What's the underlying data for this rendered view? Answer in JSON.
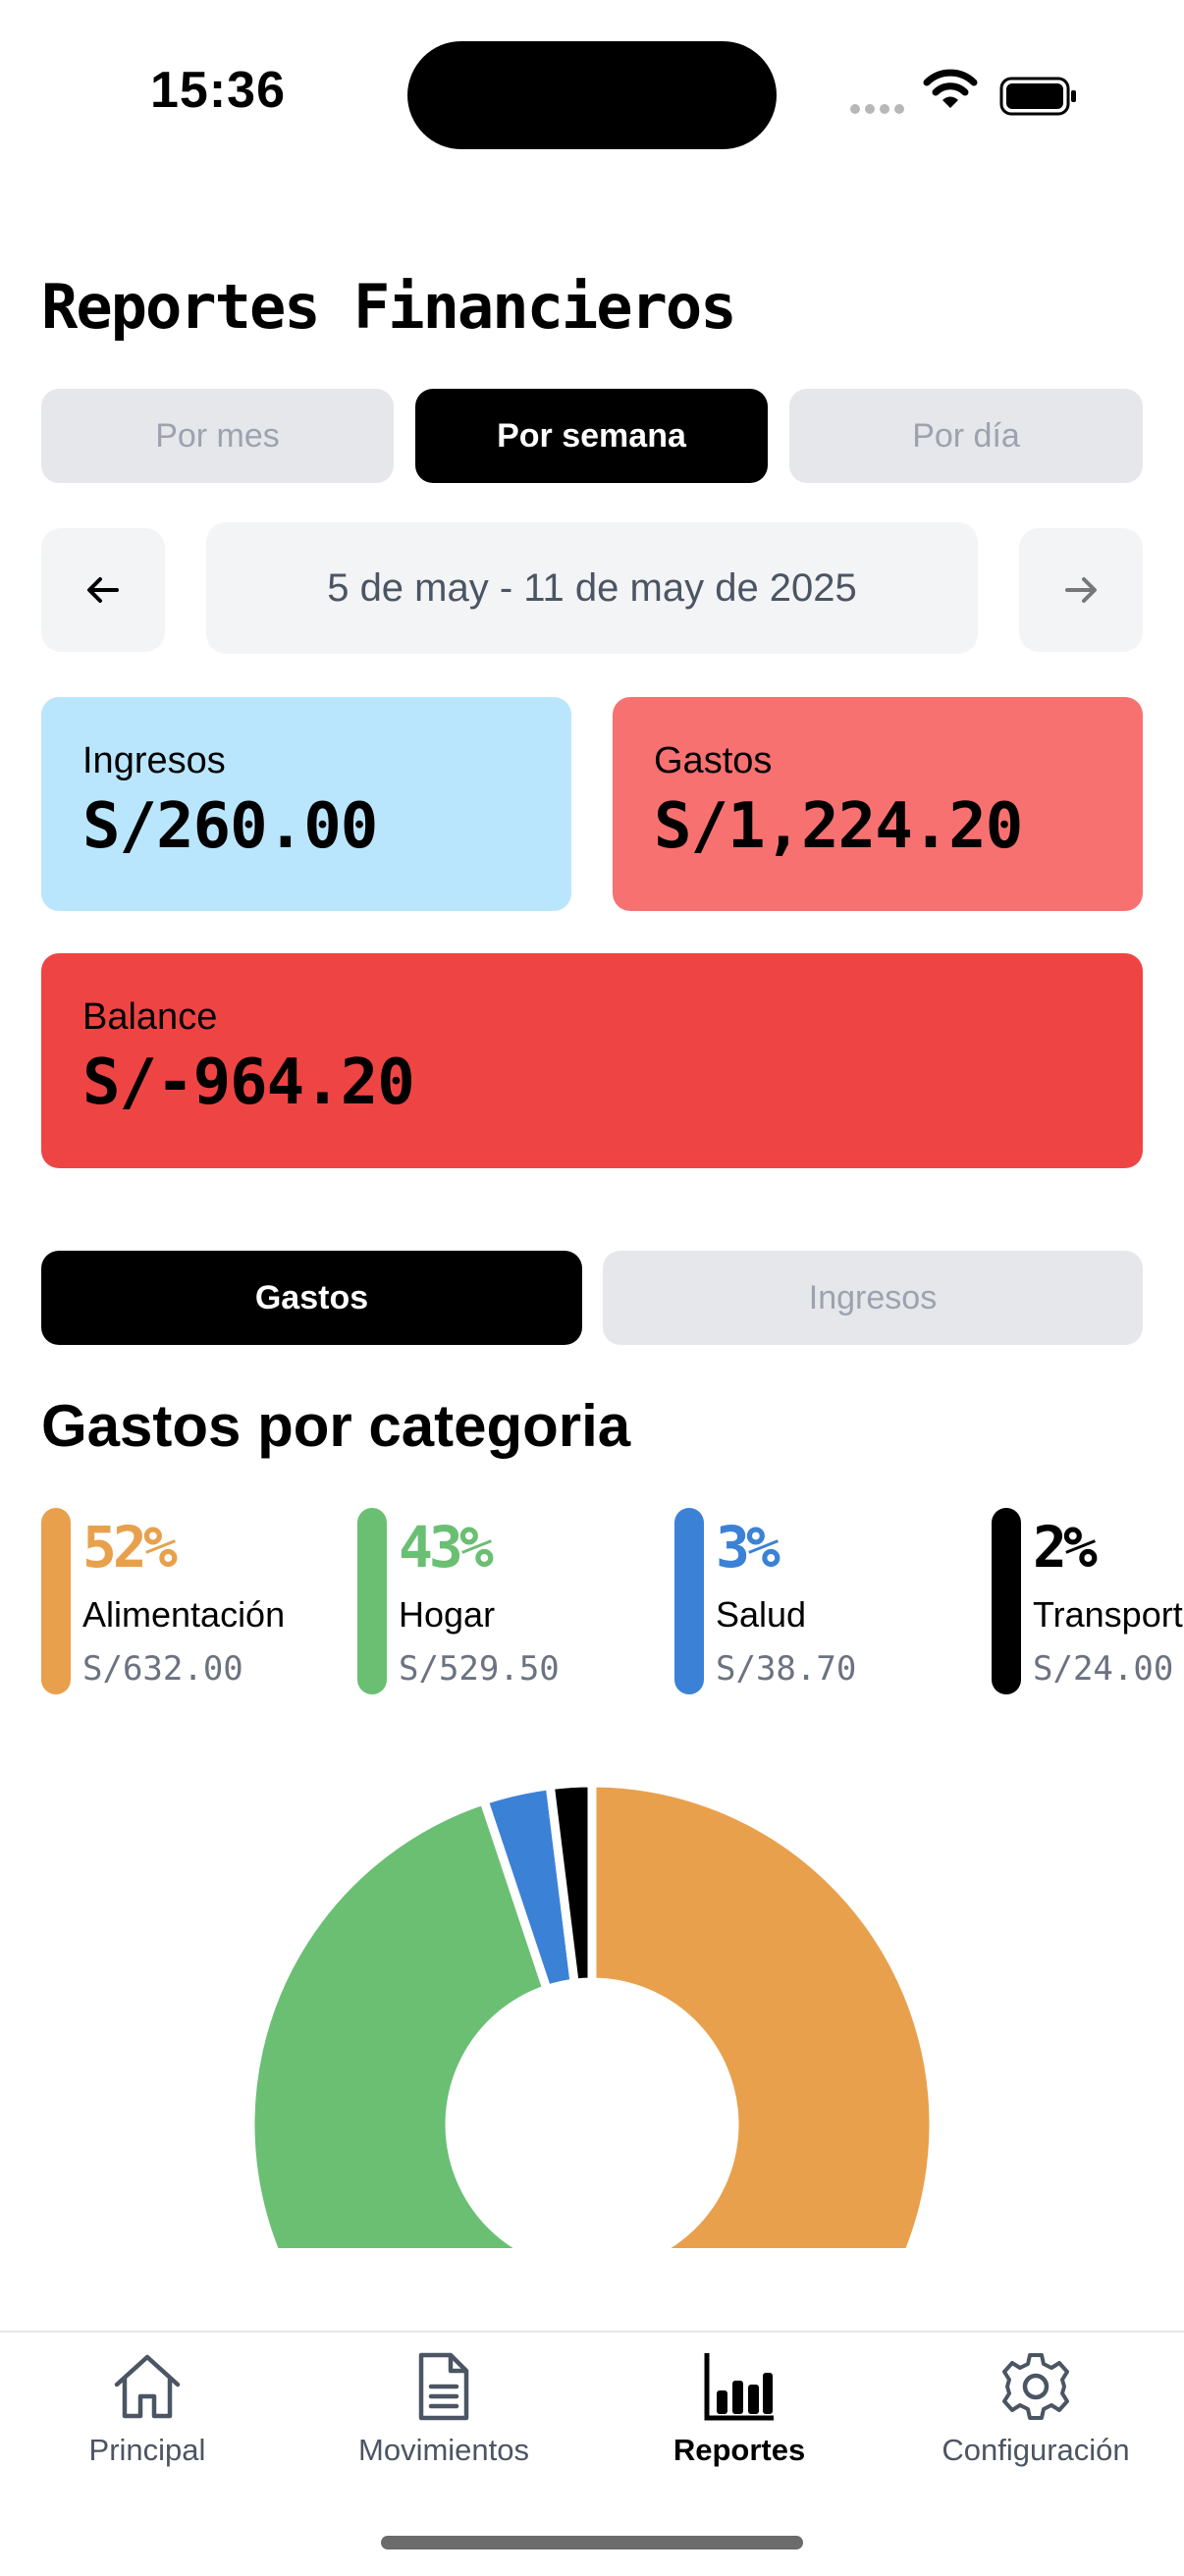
{
  "status_bar": {
    "time": "15:36"
  },
  "page": {
    "title": "Reportes Financieros"
  },
  "period_tabs": [
    {
      "label": "Por mes",
      "active": false
    },
    {
      "label": "Por semana",
      "active": true
    },
    {
      "label": "Por día",
      "active": false
    }
  ],
  "date_nav": {
    "range": "5 de may - 11 de may de 2025",
    "prev_icon": "arrow-left-icon",
    "next_icon": "arrow-right-icon"
  },
  "summary": {
    "income": {
      "label": "Ingresos",
      "amount": "S/260.00",
      "color": "#bae6fd"
    },
    "expenses": {
      "label": "Gastos",
      "amount": "S/1,224.20",
      "color": "#f87171"
    },
    "balance": {
      "label": "Balance",
      "amount": "S/-964.20",
      "color": "#ef4444"
    }
  },
  "type_tabs": [
    {
      "label": "Gastos",
      "active": true
    },
    {
      "label": "Ingresos",
      "active": false
    }
  ],
  "categories_heading": "Gastos por categoria",
  "categories": [
    {
      "pct": "52%",
      "name": "Alimentación",
      "amount": "S/632.00",
      "color": "#e8a04d"
    },
    {
      "pct": "43%",
      "name": "Hogar",
      "amount": "S/529.50",
      "color": "#6abf73"
    },
    {
      "pct": "3%",
      "name": "Salud",
      "amount": "S/38.70",
      "color": "#3b82d6"
    },
    {
      "pct": "2%",
      "name": "Transporte",
      "amount": "S/24.00",
      "color": "#000000"
    }
  ],
  "chart_data": {
    "type": "pie",
    "categories": [
      "Alimentación",
      "Hogar",
      "Salud",
      "Transporte"
    ],
    "values": [
      632.0,
      529.5,
      38.7,
      24.0
    ],
    "colors": [
      "#e8a04d",
      "#6abf73",
      "#3b82d6",
      "#000000"
    ]
  },
  "tab_bar": [
    {
      "label": "Principal",
      "icon": "home-icon",
      "active": false
    },
    {
      "label": "Movimientos",
      "icon": "document-icon",
      "active": false
    },
    {
      "label": "Reportes",
      "icon": "bar-chart-icon",
      "active": true
    },
    {
      "label": "Configuración",
      "icon": "gear-icon",
      "active": false
    }
  ]
}
